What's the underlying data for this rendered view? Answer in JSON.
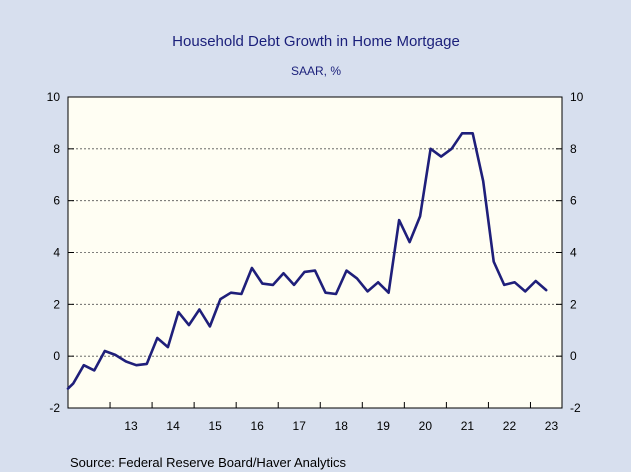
{
  "chart_data": {
    "type": "line",
    "title": "Household Debt Growth in Home Mortgage",
    "subtitle": "SAAR, %",
    "source": "Source:  Federal Reserve Board/Haver Analytics",
    "ylim": [
      -2,
      10
    ],
    "xlim": [
      2012.0,
      2023.75
    ],
    "y_ticks": [
      -2,
      0,
      2,
      4,
      6,
      8,
      10
    ],
    "y_tick_labels": [
      "-2",
      "0",
      "2",
      "4",
      "6",
      "8",
      "10"
    ],
    "x_ticks": [
      13,
      14,
      15,
      16,
      17,
      18,
      19,
      20,
      21,
      22,
      23
    ],
    "x_tick_labels": [
      "13",
      "14",
      "15",
      "16",
      "17",
      "18",
      "19",
      "20",
      "21",
      "22",
      "23"
    ],
    "grid": true,
    "background": "#fffef3",
    "line_color": "#1f1f7a",
    "series": [
      {
        "x": [
          2012.0,
          2012.125,
          2012.375,
          2012.625,
          2012.875,
          2013.125,
          2013.375,
          2013.625,
          2013.875,
          2014.125,
          2014.375,
          2014.625,
          2014.875,
          2015.125,
          2015.375,
          2015.625,
          2015.875,
          2016.125,
          2016.375,
          2016.625,
          2016.875,
          2017.125,
          2017.375,
          2017.625,
          2017.875,
          2018.125,
          2018.375,
          2018.625,
          2018.875,
          2019.125,
          2019.375,
          2019.625,
          2019.875,
          2020.125,
          2020.375,
          2020.625,
          2020.875,
          2021.125,
          2021.375,
          2021.625,
          2021.875,
          2022.125,
          2022.375,
          2022.625,
          2022.875,
          2023.125,
          2023.375
        ],
        "y": [
          -1.25,
          -1.05,
          -0.35,
          -0.55,
          0.2,
          0.05,
          -0.2,
          -0.35,
          -0.3,
          0.7,
          0.35,
          1.7,
          1.2,
          1.8,
          1.15,
          2.2,
          2.45,
          2.4,
          3.4,
          2.8,
          2.75,
          3.2,
          2.75,
          3.25,
          3.3,
          2.45,
          2.4,
          3.3,
          3.0,
          2.5,
          2.85,
          2.45,
          5.25,
          4.4,
          5.4,
          8.0,
          7.7,
          8.0,
          8.6,
          8.6,
          6.75,
          3.65,
          2.75,
          2.85,
          2.5,
          2.9,
          2.55
        ]
      }
    ]
  }
}
